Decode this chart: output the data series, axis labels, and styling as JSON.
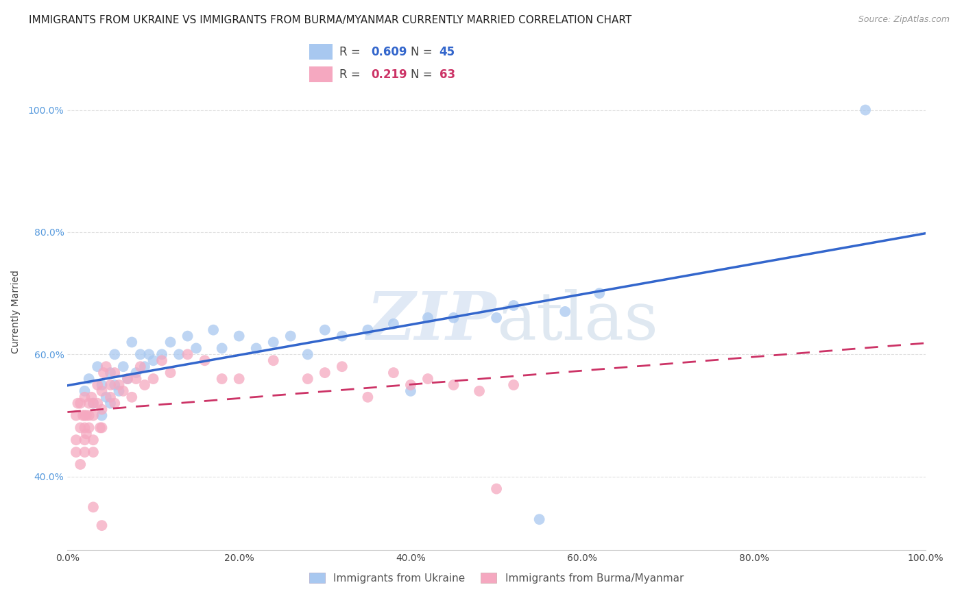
{
  "title": "IMMIGRANTS FROM UKRAINE VS IMMIGRANTS FROM BURMA/MYANMAR CURRENTLY MARRIED CORRELATION CHART",
  "source": "Source: ZipAtlas.com",
  "ylabel": "Currently Married",
  "legend_label1": "Immigrants from Ukraine",
  "legend_label2": "Immigrants from Burma/Myanmar",
  "R1": 0.609,
  "N1": 45,
  "R2": 0.219,
  "N2": 63,
  "color1": "#a8c8f0",
  "color2": "#f5a8c0",
  "line_color1": "#3366cc",
  "line_color2": "#cc3366",
  "xlim": [
    0.0,
    1.0
  ],
  "ylim": [
    0.28,
    1.06
  ],
  "xticks": [
    0.0,
    0.2,
    0.4,
    0.6,
    0.8,
    1.0
  ],
  "xtick_labels": [
    "0.0%",
    "20.0%",
    "40.0%",
    "60.0%",
    "80.0%",
    "100.0%"
  ],
  "yticks": [
    0.4,
    0.6,
    0.8,
    1.0
  ],
  "ytick_labels": [
    "40.0%",
    "60.0%",
    "80.0%",
    "100.0%"
  ],
  "ukraine_x": [
    0.02,
    0.025,
    0.03,
    0.035,
    0.04,
    0.04,
    0.045,
    0.05,
    0.05,
    0.055,
    0.055,
    0.06,
    0.065,
    0.07,
    0.075,
    0.08,
    0.085,
    0.09,
    0.095,
    0.1,
    0.11,
    0.12,
    0.13,
    0.14,
    0.15,
    0.17,
    0.18,
    0.2,
    0.22,
    0.24,
    0.26,
    0.28,
    0.3,
    0.32,
    0.35,
    0.38,
    0.4,
    0.42,
    0.45,
    0.5,
    0.52,
    0.55,
    0.58,
    0.62,
    0.93
  ],
  "ukraine_y": [
    0.54,
    0.56,
    0.52,
    0.58,
    0.5,
    0.55,
    0.53,
    0.52,
    0.57,
    0.55,
    0.6,
    0.54,
    0.58,
    0.56,
    0.62,
    0.57,
    0.6,
    0.58,
    0.6,
    0.59,
    0.6,
    0.62,
    0.6,
    0.63,
    0.61,
    0.64,
    0.61,
    0.63,
    0.61,
    0.62,
    0.63,
    0.6,
    0.64,
    0.63,
    0.64,
    0.65,
    0.54,
    0.66,
    0.66,
    0.66,
    0.68,
    0.33,
    0.67,
    0.7,
    1.0
  ],
  "burma_x": [
    0.01,
    0.01,
    0.01,
    0.012,
    0.015,
    0.015,
    0.015,
    0.018,
    0.02,
    0.02,
    0.02,
    0.02,
    0.02,
    0.022,
    0.022,
    0.025,
    0.025,
    0.025,
    0.028,
    0.03,
    0.03,
    0.03,
    0.03,
    0.035,
    0.035,
    0.038,
    0.04,
    0.04,
    0.04,
    0.042,
    0.045,
    0.05,
    0.05,
    0.055,
    0.055,
    0.06,
    0.065,
    0.07,
    0.075,
    0.08,
    0.085,
    0.09,
    0.1,
    0.11,
    0.12,
    0.14,
    0.16,
    0.18,
    0.2,
    0.24,
    0.28,
    0.3,
    0.32,
    0.35,
    0.38,
    0.4,
    0.42,
    0.45,
    0.48,
    0.5,
    0.52,
    0.03,
    0.04
  ],
  "burma_y": [
    0.5,
    0.44,
    0.46,
    0.52,
    0.48,
    0.52,
    0.42,
    0.5,
    0.48,
    0.5,
    0.53,
    0.46,
    0.44,
    0.47,
    0.5,
    0.5,
    0.52,
    0.48,
    0.53,
    0.5,
    0.52,
    0.46,
    0.44,
    0.52,
    0.55,
    0.48,
    0.51,
    0.54,
    0.48,
    0.57,
    0.58,
    0.53,
    0.55,
    0.57,
    0.52,
    0.55,
    0.54,
    0.56,
    0.53,
    0.56,
    0.58,
    0.55,
    0.56,
    0.59,
    0.57,
    0.6,
    0.59,
    0.56,
    0.56,
    0.59,
    0.56,
    0.57,
    0.58,
    0.53,
    0.57,
    0.55,
    0.56,
    0.55,
    0.54,
    0.38,
    0.55,
    0.35,
    0.32
  ],
  "watermark_zip": "ZIP",
  "watermark_atlas": "atlas",
  "background_color": "#ffffff",
  "title_fontsize": 11,
  "axis_label_fontsize": 10,
  "tick_fontsize": 10
}
